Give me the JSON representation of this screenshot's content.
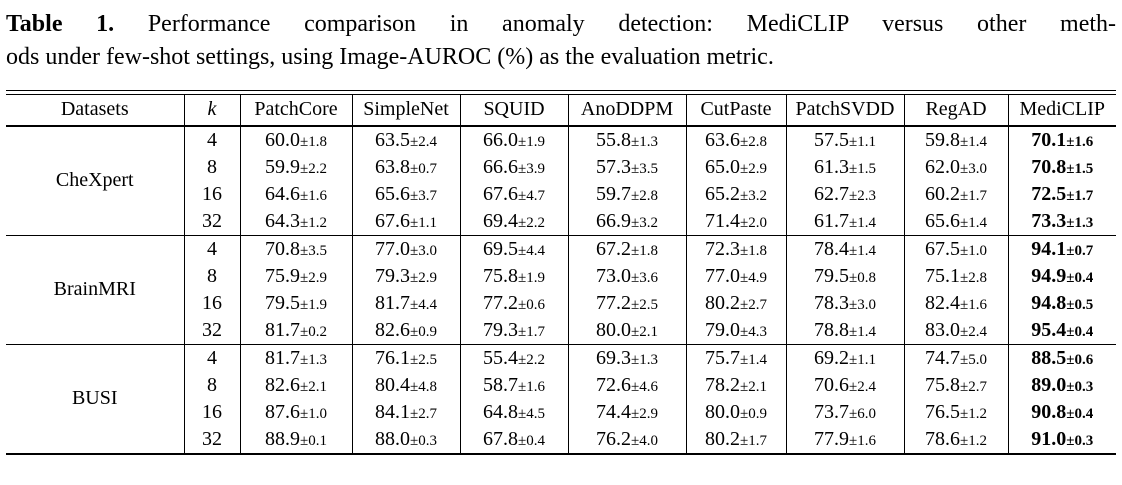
{
  "caption": {
    "label": "Table 1.",
    "line1": "Performance comparison in anomaly detection: MediCLIP versus other meth-",
    "line2": "ods under few-shot settings, using Image-AUROC (%) as the evaluation metric."
  },
  "table": {
    "plus_minus": "±",
    "columns": [
      "Datasets",
      "k",
      "PatchCore",
      "SimpleNet",
      "SQUID",
      "AnoDDPM",
      "CutPaste",
      "PatchSVDD",
      "RegAD",
      "MediCLIP"
    ],
    "bold_column": "MediCLIP",
    "groups": [
      {
        "dataset": "CheXpert",
        "rows": [
          {
            "k": "4",
            "cells": [
              {
                "mean": "60.0",
                "std": "1.8"
              },
              {
                "mean": "63.5",
                "std": "2.4"
              },
              {
                "mean": "66.0",
                "std": "1.9"
              },
              {
                "mean": "55.8",
                "std": "1.3"
              },
              {
                "mean": "63.6",
                "std": "2.8"
              },
              {
                "mean": "57.5",
                "std": "1.1"
              },
              {
                "mean": "59.8",
                "std": "1.4"
              },
              {
                "mean": "70.1",
                "std": "1.6"
              }
            ]
          },
          {
            "k": "8",
            "cells": [
              {
                "mean": "59.9",
                "std": "2.2"
              },
              {
                "mean": "63.8",
                "std": "0.7"
              },
              {
                "mean": "66.6",
                "std": "3.9"
              },
              {
                "mean": "57.3",
                "std": "3.5"
              },
              {
                "mean": "65.0",
                "std": "2.9"
              },
              {
                "mean": "61.3",
                "std": "1.5"
              },
              {
                "mean": "62.0",
                "std": "3.0"
              },
              {
                "mean": "70.8",
                "std": "1.5"
              }
            ]
          },
          {
            "k": "16",
            "cells": [
              {
                "mean": "64.6",
                "std": "1.6"
              },
              {
                "mean": "65.6",
                "std": "3.7"
              },
              {
                "mean": "67.6",
                "std": "4.7"
              },
              {
                "mean": "59.7",
                "std": "2.8"
              },
              {
                "mean": "65.2",
                "std": "3.2"
              },
              {
                "mean": "62.7",
                "std": "2.3"
              },
              {
                "mean": "60.2",
                "std": "1.7"
              },
              {
                "mean": "72.5",
                "std": "1.7"
              }
            ]
          },
          {
            "k": "32",
            "cells": [
              {
                "mean": "64.3",
                "std": "1.2"
              },
              {
                "mean": "67.6",
                "std": "1.1"
              },
              {
                "mean": "69.4",
                "std": "2.2"
              },
              {
                "mean": "66.9",
                "std": "3.2"
              },
              {
                "mean": "71.4",
                "std": "2.0"
              },
              {
                "mean": "61.7",
                "std": "1.4"
              },
              {
                "mean": "65.6",
                "std": "1.4"
              },
              {
                "mean": "73.3",
                "std": "1.3"
              }
            ]
          }
        ]
      },
      {
        "dataset": "BrainMRI",
        "rows": [
          {
            "k": "4",
            "cells": [
              {
                "mean": "70.8",
                "std": "3.5"
              },
              {
                "mean": "77.0",
                "std": "3.0"
              },
              {
                "mean": "69.5",
                "std": "4.4"
              },
              {
                "mean": "67.2",
                "std": "1.8"
              },
              {
                "mean": "72.3",
                "std": "1.8"
              },
              {
                "mean": "78.4",
                "std": "1.4"
              },
              {
                "mean": "67.5",
                "std": "1.0"
              },
              {
                "mean": "94.1",
                "std": "0.7"
              }
            ]
          },
          {
            "k": "8",
            "cells": [
              {
                "mean": "75.9",
                "std": "2.9"
              },
              {
                "mean": "79.3",
                "std": "2.9"
              },
              {
                "mean": "75.8",
                "std": "1.9"
              },
              {
                "mean": "73.0",
                "std": "3.6"
              },
              {
                "mean": "77.0",
                "std": "4.9"
              },
              {
                "mean": "79.5",
                "std": "0.8"
              },
              {
                "mean": "75.1",
                "std": "2.8"
              },
              {
                "mean": "94.9",
                "std": "0.4"
              }
            ]
          },
          {
            "k": "16",
            "cells": [
              {
                "mean": "79.5",
                "std": "1.9"
              },
              {
                "mean": "81.7",
                "std": "4.4"
              },
              {
                "mean": "77.2",
                "std": "0.6"
              },
              {
                "mean": "77.2",
                "std": "2.5"
              },
              {
                "mean": "80.2",
                "std": "2.7"
              },
              {
                "mean": "78.3",
                "std": "3.0"
              },
              {
                "mean": "82.4",
                "std": "1.6"
              },
              {
                "mean": "94.8",
                "std": "0.5"
              }
            ]
          },
          {
            "k": "32",
            "cells": [
              {
                "mean": "81.7",
                "std": "0.2"
              },
              {
                "mean": "82.6",
                "std": "0.9"
              },
              {
                "mean": "79.3",
                "std": "1.7"
              },
              {
                "mean": "80.0",
                "std": "2.1"
              },
              {
                "mean": "79.0",
                "std": "4.3"
              },
              {
                "mean": "78.8",
                "std": "1.4"
              },
              {
                "mean": "83.0",
                "std": "2.4"
              },
              {
                "mean": "95.4",
                "std": "0.4"
              }
            ]
          }
        ]
      },
      {
        "dataset": "BUSI",
        "rows": [
          {
            "k": "4",
            "cells": [
              {
                "mean": "81.7",
                "std": "1.3"
              },
              {
                "mean": "76.1",
                "std": "2.5"
              },
              {
                "mean": "55.4",
                "std": "2.2"
              },
              {
                "mean": "69.3",
                "std": "1.3"
              },
              {
                "mean": "75.7",
                "std": "1.4"
              },
              {
                "mean": "69.2",
                "std": "1.1"
              },
              {
                "mean": "74.7",
                "std": "5.0"
              },
              {
                "mean": "88.5",
                "std": "0.6"
              }
            ]
          },
          {
            "k": "8",
            "cells": [
              {
                "mean": "82.6",
                "std": "2.1"
              },
              {
                "mean": "80.4",
                "std": "4.8"
              },
              {
                "mean": "58.7",
                "std": "1.6"
              },
              {
                "mean": "72.6",
                "std": "4.6"
              },
              {
                "mean": "78.2",
                "std": "2.1"
              },
              {
                "mean": "70.6",
                "std": "2.4"
              },
              {
                "mean": "75.8",
                "std": "2.7"
              },
              {
                "mean": "89.0",
                "std": "0.3"
              }
            ]
          },
          {
            "k": "16",
            "cells": [
              {
                "mean": "87.6",
                "std": "1.0"
              },
              {
                "mean": "84.1",
                "std": "2.7"
              },
              {
                "mean": "64.8",
                "std": "4.5"
              },
              {
                "mean": "74.4",
                "std": "2.9"
              },
              {
                "mean": "80.0",
                "std": "0.9"
              },
              {
                "mean": "73.7",
                "std": "6.0"
              },
              {
                "mean": "76.5",
                "std": "1.2"
              },
              {
                "mean": "90.8",
                "std": "0.4"
              }
            ]
          },
          {
            "k": "32",
            "cells": [
              {
                "mean": "88.9",
                "std": "0.1"
              },
              {
                "mean": "88.0",
                "std": "0.3"
              },
              {
                "mean": "67.8",
                "std": "0.4"
              },
              {
                "mean": "76.2",
                "std": "4.0"
              },
              {
                "mean": "80.2",
                "std": "1.7"
              },
              {
                "mean": "77.9",
                "std": "1.6"
              },
              {
                "mean": "78.6",
                "std": "1.2"
              },
              {
                "mean": "91.0",
                "std": "0.3"
              }
            ]
          }
        ]
      }
    ]
  },
  "colors": {
    "text": "#000000",
    "background": "#ffffff",
    "rule": "#000000"
  }
}
